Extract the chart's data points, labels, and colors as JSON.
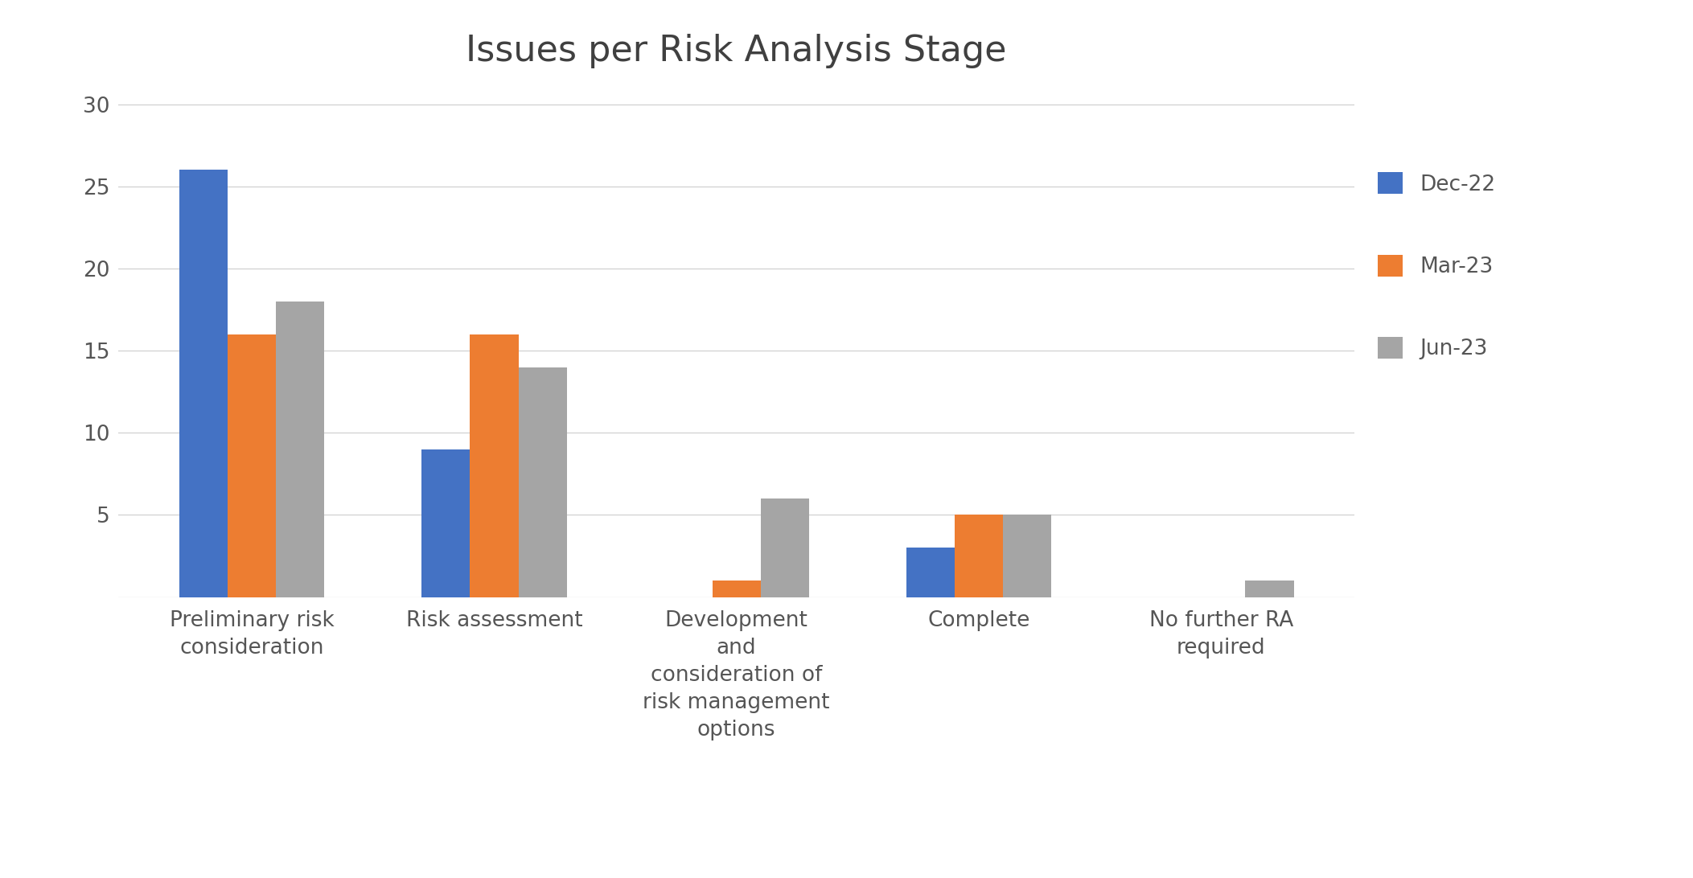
{
  "title": "Issues per Risk Analysis Stage",
  "categories": [
    "Preliminary risk\nconsideration",
    "Risk assessment",
    "Development\nand\nconsideration of\nrisk management\noptions",
    "Complete",
    "No further RA\nrequired"
  ],
  "series": [
    {
      "label": "Dec-22",
      "color": "#4472C4",
      "values": [
        26,
        9,
        0,
        3,
        0
      ]
    },
    {
      "label": "Mar-23",
      "color": "#ED7D31",
      "values": [
        16,
        16,
        1,
        5,
        0
      ]
    },
    {
      "label": "Jun-23",
      "color": "#A5A5A5",
      "values": [
        18,
        14,
        6,
        5,
        1
      ]
    }
  ],
  "ylim": [
    0,
    31
  ],
  "yticks": [
    5,
    10,
    15,
    20,
    25,
    30
  ],
  "background_color": "#FFFFFF",
  "title_fontsize": 32,
  "tick_fontsize": 19,
  "legend_fontsize": 19,
  "bar_width": 0.2,
  "grid_color": "#D0D0D0",
  "spine_color": "#D0D0D0",
  "title_color": "#404040",
  "tick_label_color": "#555555"
}
